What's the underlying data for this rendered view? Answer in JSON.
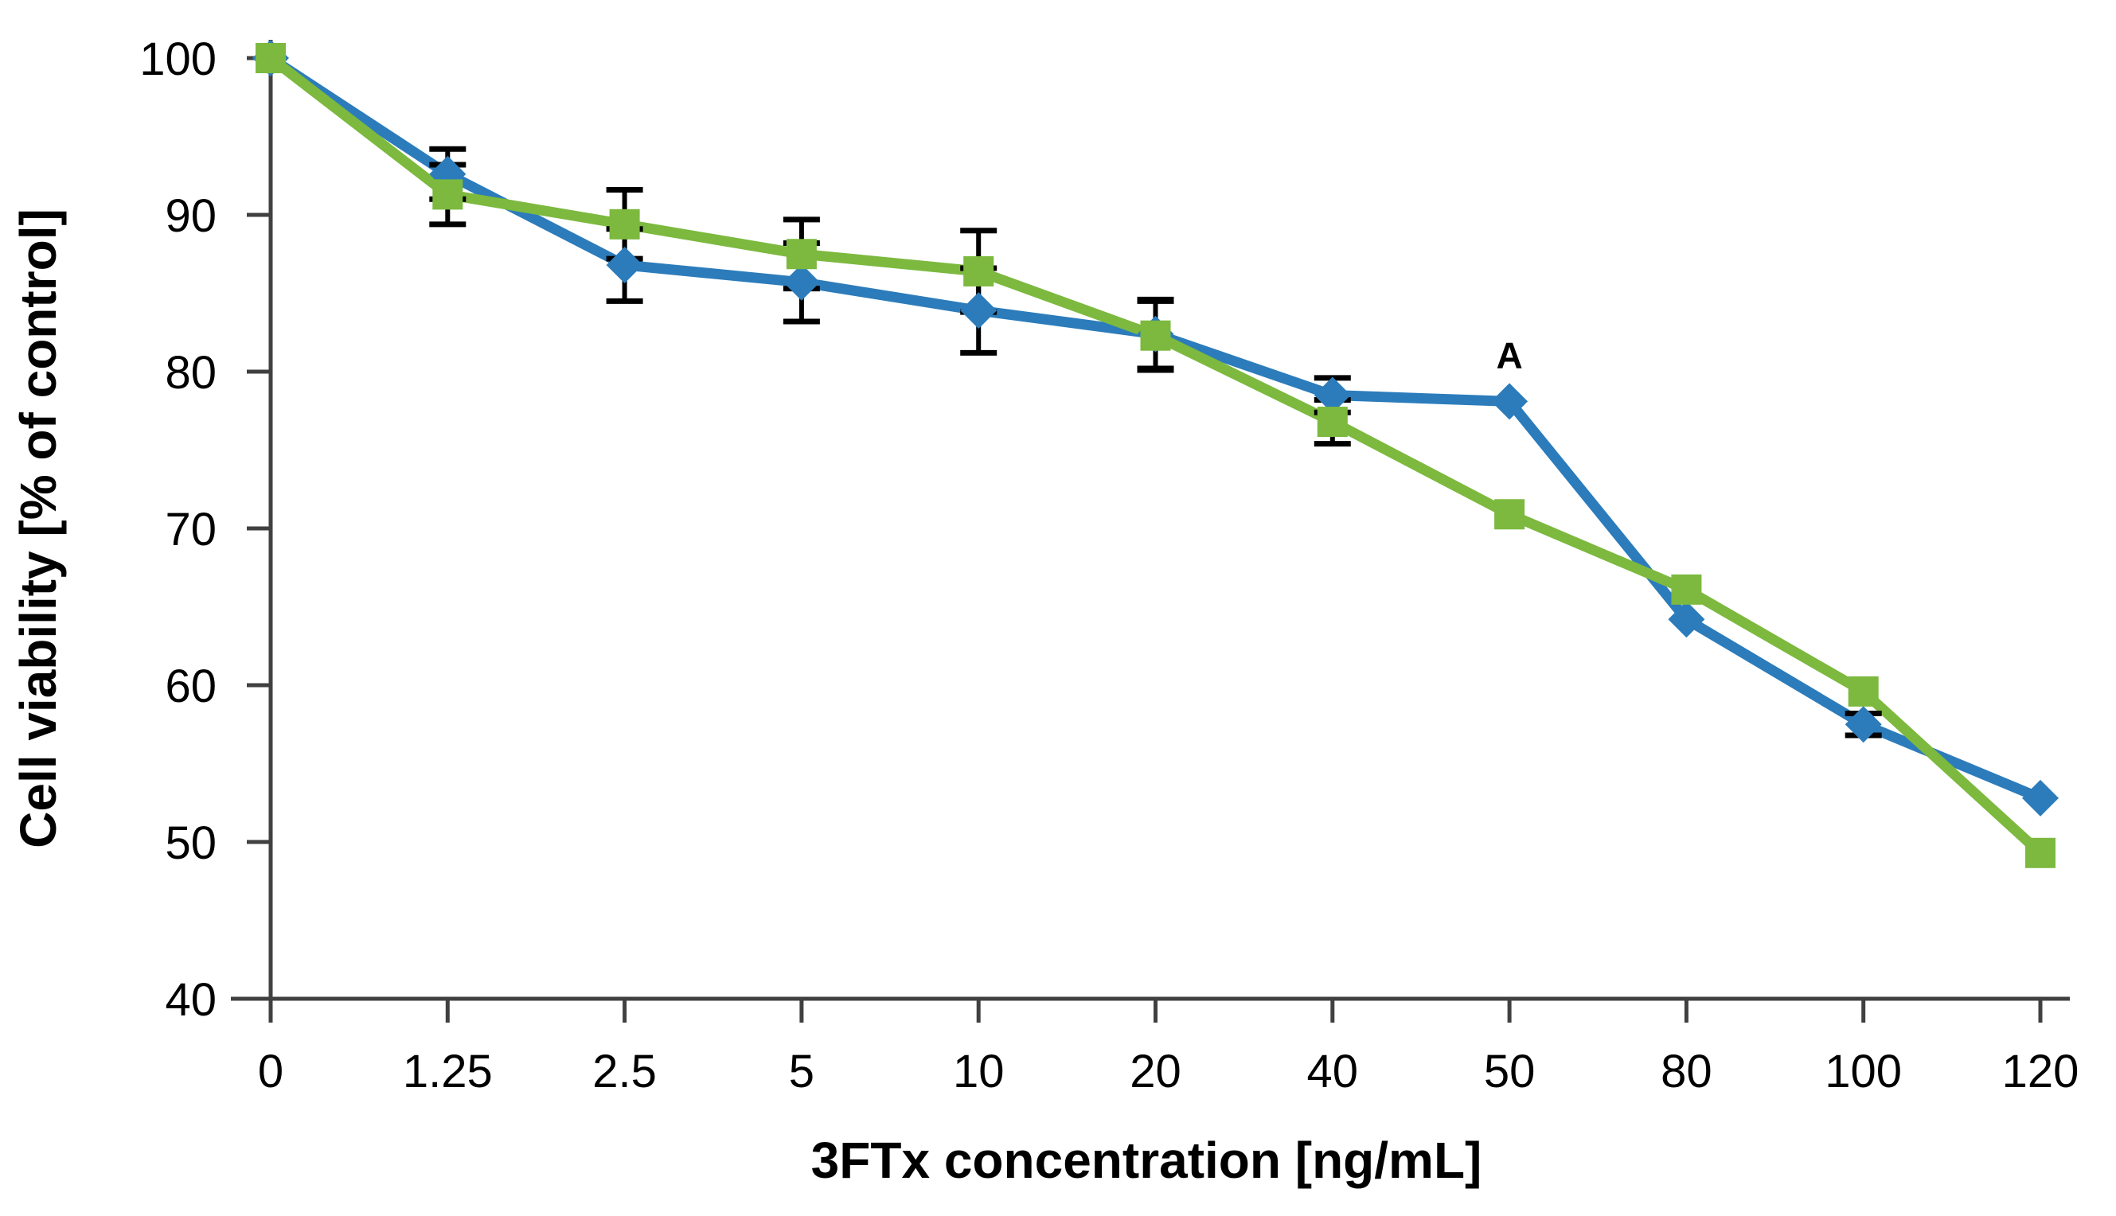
{
  "chart_data": {
    "type": "line",
    "title": "",
    "xlabel": "3FTx concentration [ng/mL]",
    "ylabel": "Cell viability [% of control]",
    "categories": [
      "0",
      "1.25",
      "2.5",
      "5",
      "10",
      "20",
      "40",
      "50",
      "80",
      "100",
      "120"
    ],
    "y_ticks": [
      "40",
      "50",
      "60",
      "70",
      "80",
      "90",
      "100"
    ],
    "ylim": [
      40,
      100
    ],
    "grid": "off",
    "legend": "none",
    "annotation": {
      "text": "A",
      "category_index": 7,
      "series_index": 0
    },
    "series": [
      {
        "name": "blue-diamond-series",
        "marker": "diamond",
        "color": "#2C7CBB",
        "values": [
          100,
          92.6,
          86.8,
          85.7,
          83.9,
          82.4,
          78.5,
          78.1,
          64.2,
          57.5,
          52.8
        ],
        "errors": [
          0,
          1.6,
          2.3,
          2.5,
          2.7,
          2.2,
          1.1,
          0,
          0,
          0.7,
          0
        ]
      },
      {
        "name": "green-square-series",
        "marker": "square",
        "color": "#7CB93E",
        "values": [
          100,
          91.3,
          89.4,
          87.5,
          86.4,
          82.3,
          76.8,
          70.9,
          66.1,
          59.6,
          49.3
        ],
        "errors": [
          0,
          1.9,
          2.2,
          2.2,
          2.6,
          2.2,
          1.4,
          0,
          0,
          0,
          0
        ]
      }
    ],
    "error_bar_color": "#000000",
    "axis_color": "#404040",
    "text_color": "#000000"
  }
}
